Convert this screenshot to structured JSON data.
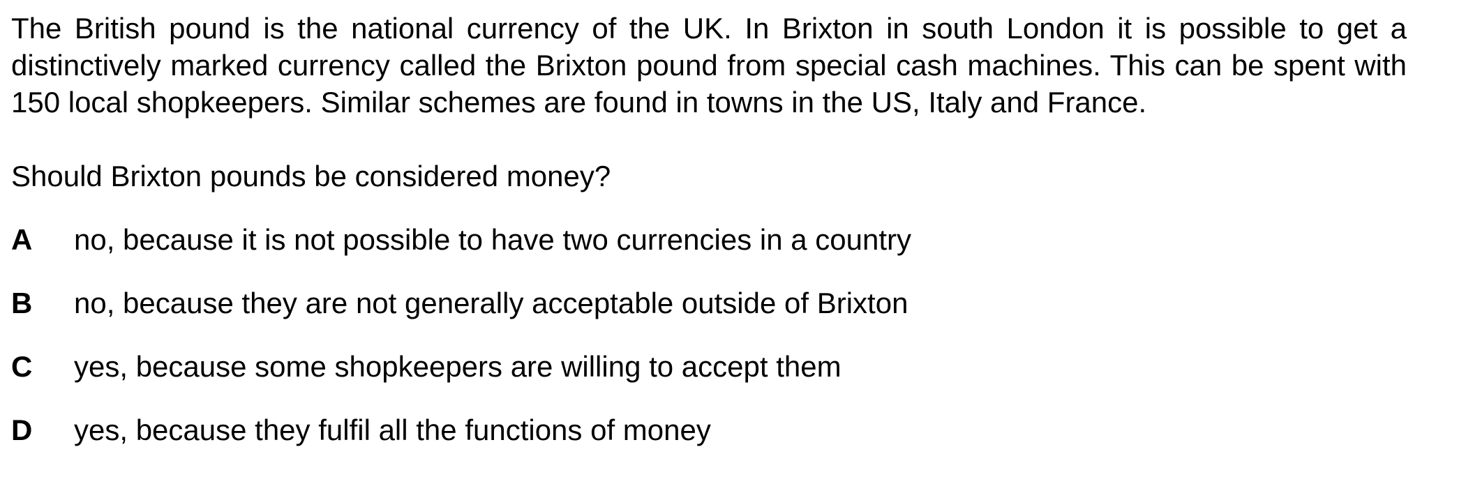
{
  "passage": "The British pound is the national currency of the UK. In Brixton in south London it is possible to get a distinctively marked currency called the Brixton pound from special cash machines. This can be spent with 150 local shopkeepers. Similar schemes are found in towns in the US, Italy and France.",
  "question": "Should Brixton pounds be considered money?",
  "options": [
    {
      "letter": "A",
      "text": "no, because it is not possible to have two currencies in a country"
    },
    {
      "letter": "B",
      "text": "no, because they are not generally acceptable outside of Brixton"
    },
    {
      "letter": "C",
      "text": "yes, because some shopkeepers are willing to accept them"
    },
    {
      "letter": "D",
      "text": "yes, because they fulfil all the functions of money"
    }
  ]
}
